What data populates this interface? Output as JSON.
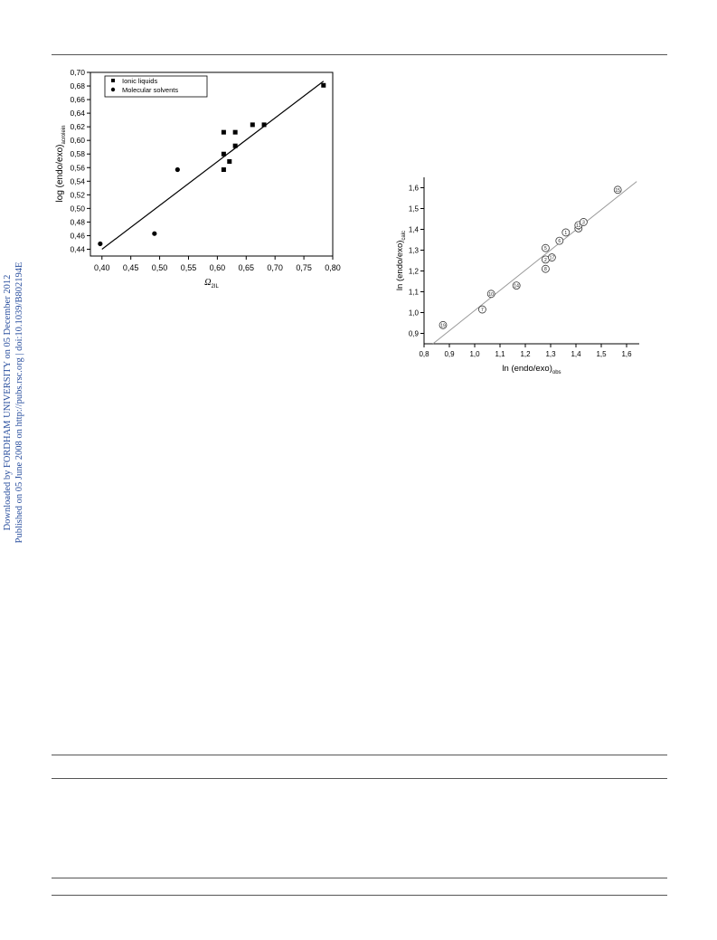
{
  "sidebar": {
    "line1": "Downloaded by FORDHAM UNIVERSITY on 05 December 2012",
    "line2": "Published on 05 June 2008 on http://pubs.rsc.org | doi:10.1039/B802194E"
  },
  "chart_data": [
    {
      "type": "scatter",
      "title": "",
      "xlabel": "Ω",
      "xlabel_sub": "2IL",
      "ylabel": "log (endo/exo)",
      "ylabel_sub": "acrolein",
      "xlim": [
        0.38,
        0.8
      ],
      "ylim": [
        0.43,
        0.7
      ],
      "xticks": [
        "0,40",
        "0,45",
        "0,50",
        "0,55",
        "0,60",
        "0,65",
        "0,70",
        "0,75",
        "0,80"
      ],
      "yticks": [
        "0,44",
        "0,46",
        "0,48",
        "0,50",
        "0,52",
        "0,54",
        "0,56",
        "0,58",
        "0,60",
        "0,62",
        "0,64",
        "0,66",
        "0,68",
        "0,70"
      ],
      "legend_position": "top-left",
      "series": [
        {
          "name": "Ionic liquids",
          "marker": "square",
          "x": [
            0.611,
            0.611,
            0.611,
            0.621,
            0.631,
            0.631,
            0.661,
            0.681,
            0.784
          ],
          "y": [
            0.612,
            0.58,
            0.557,
            0.569,
            0.592,
            0.612,
            0.623,
            0.623,
            0.681
          ]
        },
        {
          "name": "Molecular solvents",
          "marker": "circle",
          "x": [
            0.397,
            0.491,
            0.531
          ],
          "y": [
            0.448,
            0.463,
            0.557
          ]
        }
      ],
      "fit_line": {
        "x": [
          0.4,
          0.784
        ],
        "y": [
          0.44,
          0.687
        ]
      }
    },
    {
      "type": "scatter",
      "title": "",
      "xlabel": "ln (endo/exo)",
      "xlabel_sub": "obs",
      "ylabel": "ln (endo/exo)",
      "ylabel_sub": "calc",
      "xlim": [
        0.8,
        1.65
      ],
      "ylim": [
        0.85,
        1.65
      ],
      "xticks": [
        "0,8",
        "0,9",
        "1,0",
        "1,1",
        "1,2",
        "1,3",
        "1,4",
        "1,5",
        "1,6"
      ],
      "yticks": [
        "0,9",
        "1,0",
        "1,1",
        "1,2",
        "1,3",
        "1,4",
        "1,5",
        "1,6"
      ],
      "points": [
        {
          "label": "19",
          "x": 0.875,
          "y": 0.94
        },
        {
          "label": "7",
          "x": 1.03,
          "y": 1.015
        },
        {
          "label": "10",
          "x": 1.065,
          "y": 1.09
        },
        {
          "label": "14",
          "x": 1.165,
          "y": 1.13
        },
        {
          "label": "8",
          "x": 1.28,
          "y": 1.21
        },
        {
          "label": "2",
          "x": 1.28,
          "y": 1.255
        },
        {
          "label": "17",
          "x": 1.305,
          "y": 1.265
        },
        {
          "label": "5",
          "x": 1.28,
          "y": 1.31
        },
        {
          "label": "6",
          "x": 1.335,
          "y": 1.345
        },
        {
          "label": "1",
          "x": 1.36,
          "y": 1.385
        },
        {
          "label": "4",
          "x": 1.41,
          "y": 1.405
        },
        {
          "label": "12",
          "x": 1.41,
          "y": 1.42
        },
        {
          "label": "3",
          "x": 1.43,
          "y": 1.435
        },
        {
          "label": "15",
          "x": 1.565,
          "y": 1.59
        }
      ],
      "fit_line": {
        "x": [
          0.835,
          1.64
        ],
        "y": [
          0.85,
          1.63
        ]
      }
    }
  ]
}
